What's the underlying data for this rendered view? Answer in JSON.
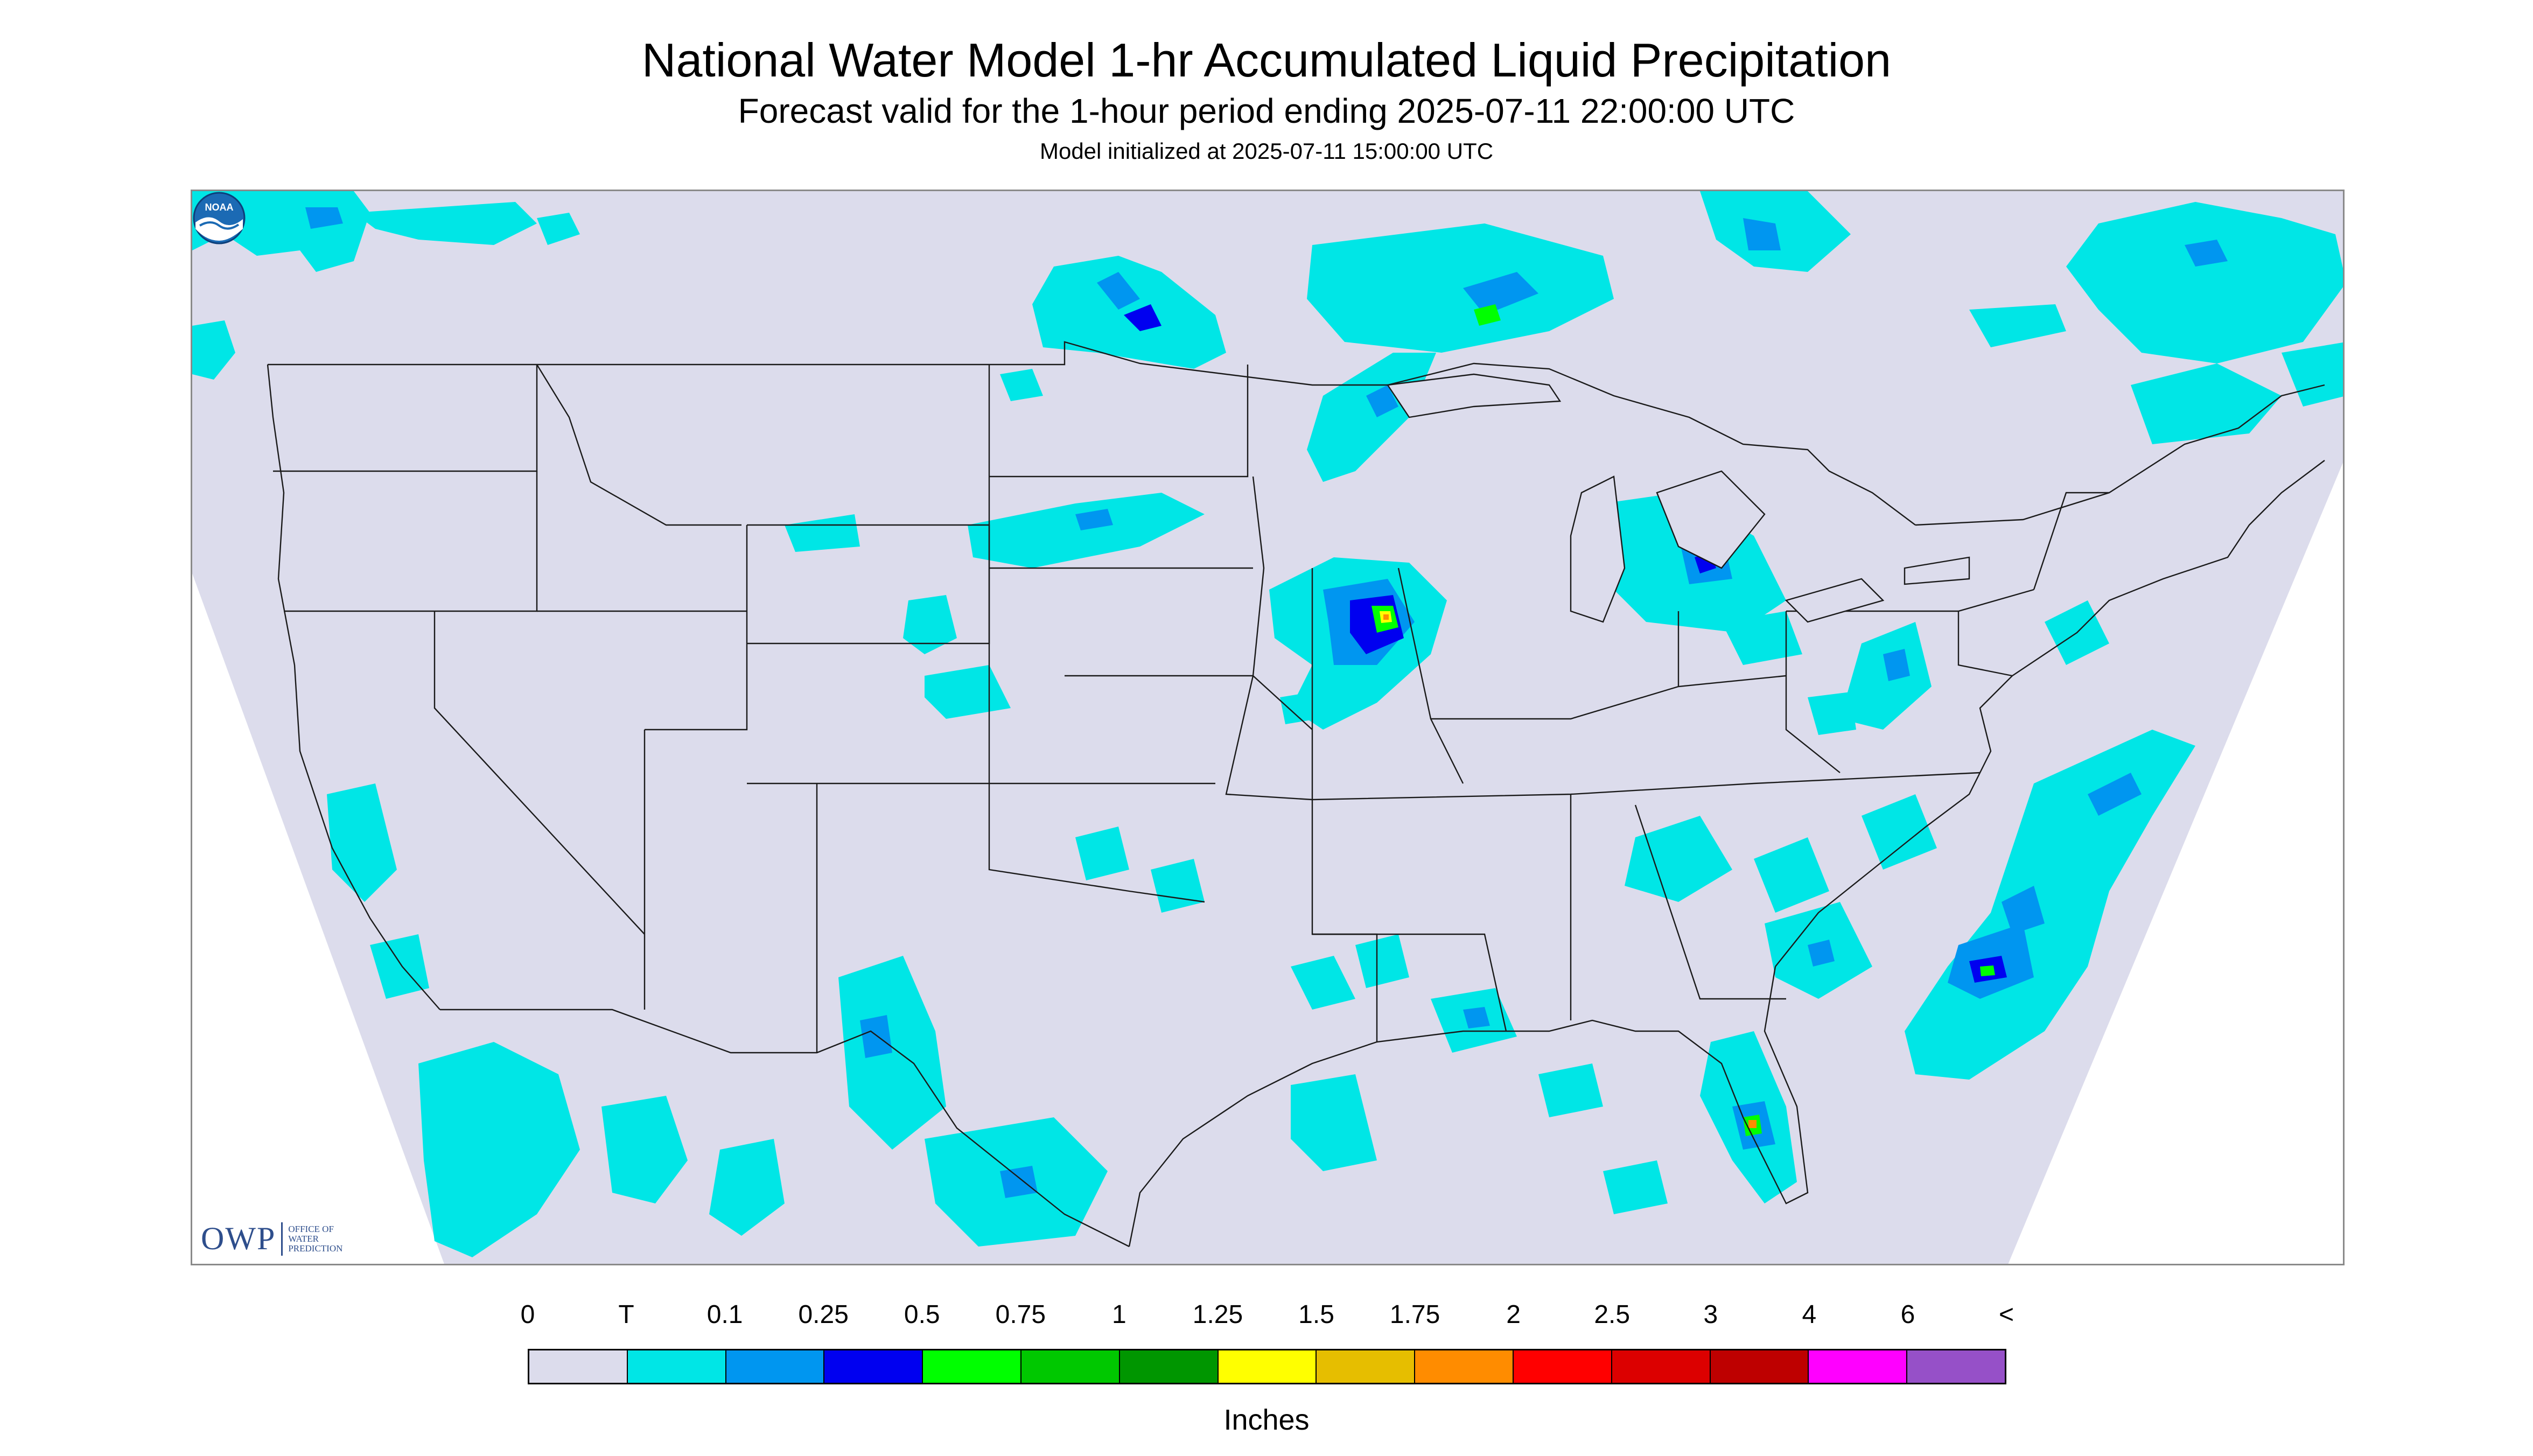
{
  "header": {
    "title": "National Water Model 1-hr Accumulated Liquid Precipitation",
    "subtitle": "Forecast valid for the 1-hour period ending 2025-07-11 22:00:00 UTC",
    "init": "Model initialized at 2025-07-11 15:00:00 UTC"
  },
  "logo": {
    "mark": "OWP",
    "text": "OFFICE OF\nWATER\nPREDICTION",
    "noaa": "NOAA"
  },
  "colors": {
    "domain": "#dcdcec",
    "outside": "#ffffff",
    "border": "#1a1a1a"
  },
  "legend": {
    "labels": [
      "0",
      "T",
      "0.1",
      "0.25",
      "0.5",
      "0.75",
      "1",
      "1.25",
      "1.5",
      "1.75",
      "2",
      "2.5",
      "3",
      "4",
      "6",
      "<"
    ],
    "colors": [
      "#dcdcec",
      "#00e6e6",
      "#0096f0",
      "#0000f0",
      "#00ff00",
      "#00c800",
      "#009600",
      "#ffff00",
      "#e6be00",
      "#ff8c00",
      "#ff0000",
      "#dc0000",
      "#be0000",
      "#ff00ff",
      "#9650c8"
    ],
    "units": "Inches"
  },
  "precip": {
    "trace": "#00e6e6",
    "light": "#0096f0",
    "moderate": "#0000f0",
    "green": "#00ff00",
    "dkgreen": "#00c800",
    "yellow": "#ffff00",
    "orange": "#ff8c00"
  }
}
